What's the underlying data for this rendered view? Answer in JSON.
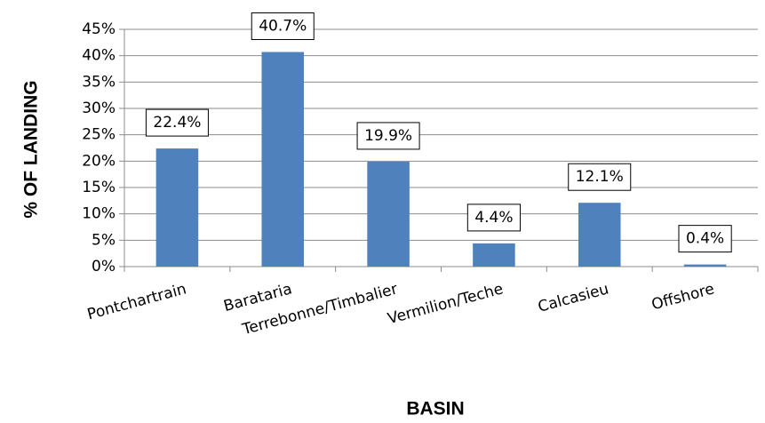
{
  "chart_data": {
    "type": "bar",
    "x_label": "BASIN",
    "y_label": "% OF LANDING",
    "categories": [
      "Pontchartrain",
      "Barataria",
      "Terrebonne/Timbalier",
      "Vermilion/Teche",
      "Calcasieu",
      "Offshore"
    ],
    "values": [
      22.4,
      40.7,
      19.9,
      4.4,
      12.1,
      0.4
    ],
    "value_labels": [
      "22.4%",
      "40.7%",
      "19.9%",
      "4.4%",
      "12.1%",
      "0.4%"
    ],
    "color": "#4f81bd",
    "ylim": [
      0,
      45
    ],
    "yticks": [
      {
        "value": 0,
        "label": "0%"
      },
      {
        "value": 5,
        "label": "5%"
      },
      {
        "value": 10,
        "label": "10%"
      },
      {
        "value": 15,
        "label": "15%"
      },
      {
        "value": 20,
        "label": "20%"
      },
      {
        "value": 25,
        "label": "25%"
      },
      {
        "value": 30,
        "label": "30%"
      },
      {
        "value": 35,
        "label": "35%"
      },
      {
        "value": 40,
        "label": "40%"
      },
      {
        "value": 45,
        "label": "45%"
      }
    ],
    "grid": true
  }
}
